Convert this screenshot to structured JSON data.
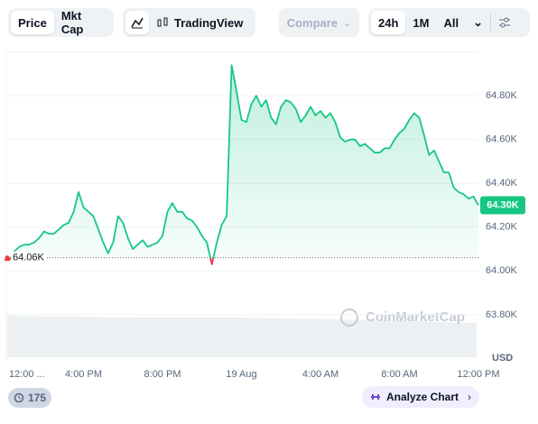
{
  "toolbar": {
    "tabs": [
      "Price",
      "Mkt Cap"
    ],
    "tradingview": "TradingView",
    "compare": "Compare",
    "ranges": [
      "24h",
      "1M",
      "All"
    ]
  },
  "chart_data": {
    "type": "line",
    "categories": [
      "12:00 ...",
      null,
      null,
      null,
      null,
      null,
      null,
      null,
      null,
      null,
      null,
      null,
      null,
      null,
      null,
      null,
      "4:00 PM",
      null,
      null,
      null,
      null,
      null,
      null,
      null,
      null,
      null,
      null,
      null,
      null,
      null,
      null,
      null,
      "8:00 PM",
      null,
      null,
      null,
      null,
      null,
      null,
      null,
      null,
      null,
      null,
      null,
      null,
      null,
      null,
      null,
      "19 Aug",
      null,
      null,
      null,
      null,
      null,
      null,
      null,
      null,
      null,
      null,
      null,
      null,
      null,
      null,
      null,
      "4:00 AM",
      null,
      null,
      null,
      null,
      null,
      null,
      null,
      null,
      null,
      null,
      null,
      null,
      null,
      null,
      null,
      "8:00 AM",
      null,
      null,
      null,
      null,
      null,
      null,
      null,
      null,
      null,
      null,
      null,
      null,
      null,
      null,
      null,
      "12:00 PM"
    ],
    "values": [
      64050,
      64050,
      64090,
      64110,
      64120,
      64120,
      64130,
      64150,
      64180,
      64170,
      64170,
      64190,
      64210,
      64220,
      64270,
      64360,
      64290,
      64270,
      64250,
      64190,
      64130,
      64080,
      64130,
      64250,
      64220,
      64150,
      64100,
      64120,
      64140,
      64110,
      64120,
      64130,
      64160,
      64270,
      64310,
      64270,
      64270,
      64240,
      64230,
      64200,
      64160,
      64130,
      64030,
      64130,
      64210,
      64250,
      64940,
      64820,
      64690,
      64680,
      64760,
      64800,
      64750,
      64780,
      64700,
      64670,
      64750,
      64780,
      64770,
      64740,
      64680,
      64710,
      64750,
      64710,
      64730,
      64700,
      64720,
      64680,
      64610,
      64590,
      64600,
      64600,
      64570,
      64580,
      64560,
      64540,
      64540,
      64560,
      64560,
      64600,
      64630,
      64650,
      64690,
      64720,
      64700,
      64620,
      64530,
      64550,
      64500,
      64450,
      64450,
      64380,
      64360,
      64350,
      64330,
      64340,
      64300
    ],
    "color": "#16c784",
    "down_color": "#ea3943",
    "ylim": [
      63610,
      64990
    ],
    "yticks": [
      {
        "value": 63800,
        "label": "63.80K"
      },
      {
        "value": 64000,
        "label": "64.00K"
      },
      {
        "value": 64200,
        "label": "64.20K"
      },
      {
        "value": 64400,
        "label": "64.40K"
      },
      {
        "value": 64600,
        "label": "64.60K"
      },
      {
        "value": 64800,
        "label": "64.80K"
      }
    ],
    "grid": true,
    "reference_line": {
      "value": 64060,
      "label": "64.06K"
    },
    "last_price": {
      "value": 64300,
      "label": "64.30K"
    },
    "y_axis_label": "USD",
    "watermark": "CoinMarketCap"
  },
  "footer": {
    "events_count": 175,
    "analyze": "Analyze Chart"
  }
}
